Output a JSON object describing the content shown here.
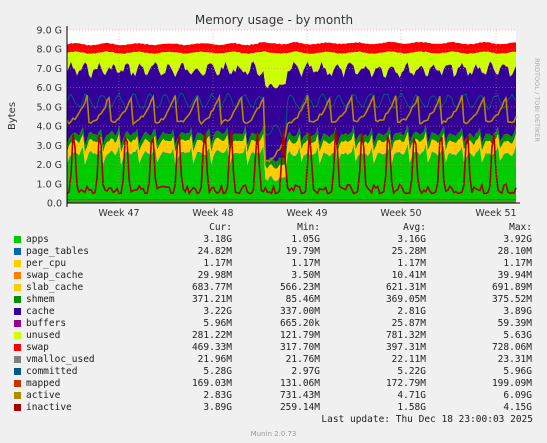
{
  "chart_data": {
    "type": "area",
    "title": "Memory usage - by month",
    "ylabel": "Bytes",
    "xlabel": "",
    "ylim": [
      0,
      9.0
    ],
    "yticks": [
      "0.0",
      "1.0 G",
      "2.0 G",
      "3.0 G",
      "4.0 G",
      "5.0 G",
      "6.0 G",
      "7.0 G",
      "8.0 G",
      "9.0 G"
    ],
    "xticks": [
      "Week 47",
      "Week 48",
      "Week 49",
      "Week 50",
      "Week 51"
    ],
    "side_label": "RRDTOOL / TOBI OETIKER",
    "grid": true,
    "stack_order": [
      "apps",
      "page_tables",
      "per_cpu",
      "swap_cache",
      "slab_cache",
      "shmem",
      "cache",
      "buffers",
      "unused",
      "swap"
    ],
    "line_series": [
      "vmalloc_used",
      "committed",
      "mapped",
      "active",
      "inactive"
    ]
  },
  "legend": {
    "headers": {
      "cur": "Cur:",
      "min": "Min:",
      "avg": "Avg:",
      "max": "Max:"
    },
    "rows": [
      {
        "name": "apps",
        "color": "#00cc00",
        "cur": "3.18G",
        "min": "1.05G",
        "avg": "3.16G",
        "max": "3.92G"
      },
      {
        "name": "page_tables",
        "color": "#0066b3",
        "cur": "24.82M",
        "min": "19.79M",
        "avg": "25.28M",
        "max": "28.10M"
      },
      {
        "name": "per_cpu",
        "color": "#ffcc00",
        "cur": "1.17M",
        "min": "1.17M",
        "avg": "1.17M",
        "max": "1.17M"
      },
      {
        "name": "swap_cache",
        "color": "#ff8000",
        "cur": "29.98M",
        "min": "3.50M",
        "avg": "10.41M",
        "max": "39.94M"
      },
      {
        "name": "slab_cache",
        "color": "#ffcc00",
        "cur": "683.77M",
        "min": "566.23M",
        "avg": "621.31M",
        "max": "691.89M"
      },
      {
        "name": "shmem",
        "color": "#008f00",
        "cur": "371.21M",
        "min": "85.46M",
        "avg": "369.05M",
        "max": "375.52M"
      },
      {
        "name": "cache",
        "color": "#330099",
        "cur": "3.22G",
        "min": "337.00M",
        "avg": "2.81G",
        "max": "3.89G"
      },
      {
        "name": "buffers",
        "color": "#990099",
        "cur": "5.96M",
        "min": "665.20k",
        "avg": "25.87M",
        "max": "59.39M"
      },
      {
        "name": "unused",
        "color": "#ccff00",
        "cur": "281.22M",
        "min": "121.79M",
        "avg": "781.32M",
        "max": "5.63G"
      },
      {
        "name": "swap",
        "color": "#ff0000",
        "cur": "469.33M",
        "min": "317.70M",
        "avg": "397.31M",
        "max": "728.06M"
      },
      {
        "name": "vmalloc_used",
        "color": "#808080",
        "cur": "21.96M",
        "min": "21.76M",
        "avg": "22.11M",
        "max": "23.31M"
      },
      {
        "name": "committed",
        "color": "#005a82",
        "cur": "5.28G",
        "min": "2.97G",
        "avg": "5.22G",
        "max": "5.96G"
      },
      {
        "name": "mapped",
        "color": "#cc3300",
        "cur": "169.03M",
        "min": "131.06M",
        "avg": "172.79M",
        "max": "199.09M"
      },
      {
        "name": "active",
        "color": "#b08a00",
        "cur": "2.83G",
        "min": "731.43M",
        "avg": "4.71G",
        "max": "6.09G"
      },
      {
        "name": "inactive",
        "color": "#aa0000",
        "cur": "3.89G",
        "min": "259.14M",
        "avg": "1.58G",
        "max": "4.15G"
      }
    ]
  },
  "footer": {
    "last_update": "Last update: Thu Dec 18 23:00:03 2025",
    "generator": "Munin 2.0.73"
  }
}
